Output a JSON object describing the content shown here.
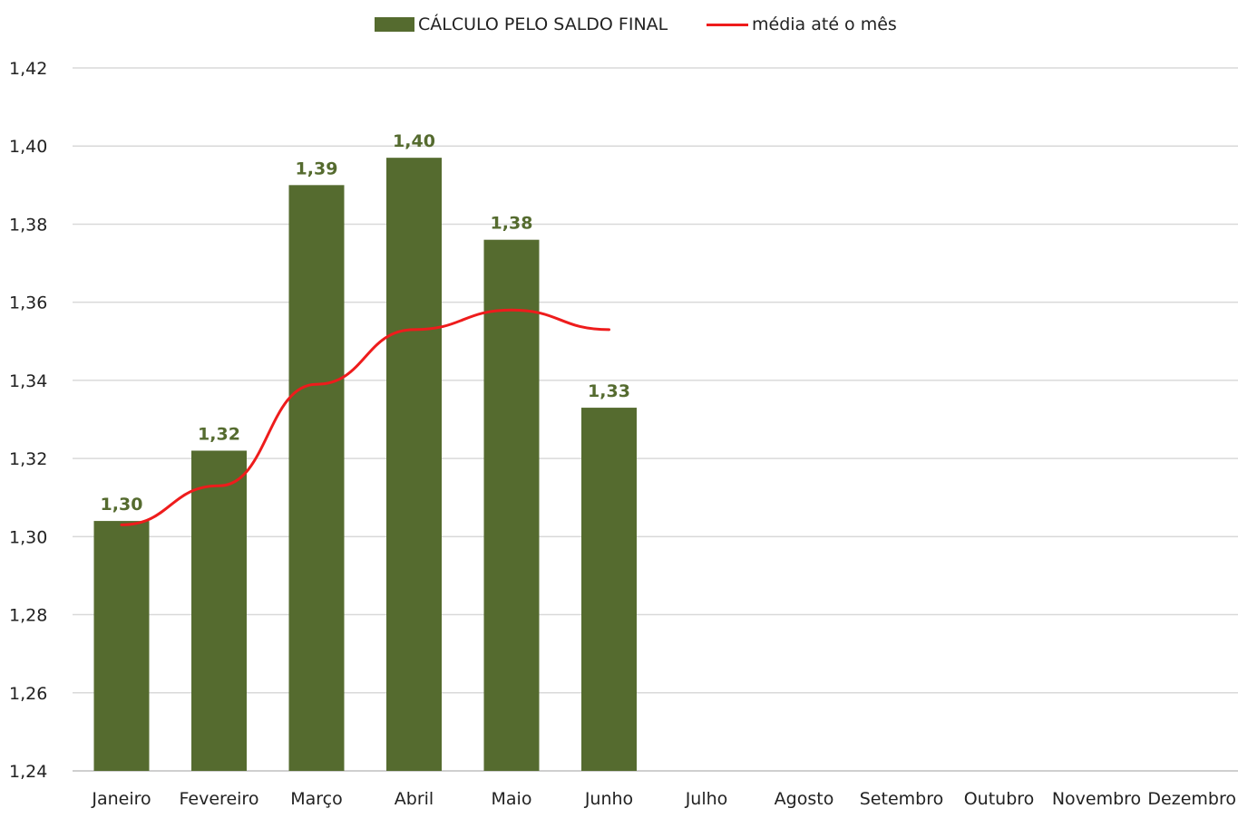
{
  "colors": {
    "bar": "#556b2f",
    "line": "#ee1c1c",
    "grid": "#d9d9d9",
    "axis": "#bfbfbf",
    "tick_text": "#222222",
    "data_label": "#556b2f"
  },
  "chart_data": {
    "type": "bar",
    "categories": [
      "Janeiro",
      "Fevereiro",
      "Março",
      "Abril",
      "Maio",
      "Junho",
      "Julho",
      "Agosto",
      "Setembro",
      "Outubro",
      "Novembro",
      "Dezembro"
    ],
    "series": [
      {
        "name": "CÁLCULO PELO SALDO FINAL",
        "type": "bar",
        "values": [
          1.304,
          1.322,
          1.39,
          1.397,
          1.376,
          1.333,
          null,
          null,
          null,
          null,
          null,
          null
        ],
        "data_labels": [
          "1,30",
          "1,32",
          "1,39",
          "1,40",
          "1,38",
          "1,33"
        ]
      },
      {
        "name": "média até o mês",
        "type": "line",
        "values": [
          1.303,
          1.313,
          1.339,
          1.353,
          1.358,
          1.353,
          null,
          null,
          null,
          null,
          null,
          null
        ]
      }
    ],
    "ylim": [
      1.24,
      1.42
    ],
    "yticks": [
      "1,24",
      "1,26",
      "1,28",
      "1,30",
      "1,32",
      "1,34",
      "1,36",
      "1,38",
      "1,40",
      "1,42"
    ],
    "ytick_values": [
      1.24,
      1.26,
      1.28,
      1.3,
      1.32,
      1.34,
      1.36,
      1.38,
      1.4,
      1.42
    ],
    "grid": true,
    "legend_position": "top-center",
    "title": "",
    "xlabel": "",
    "ylabel": ""
  }
}
